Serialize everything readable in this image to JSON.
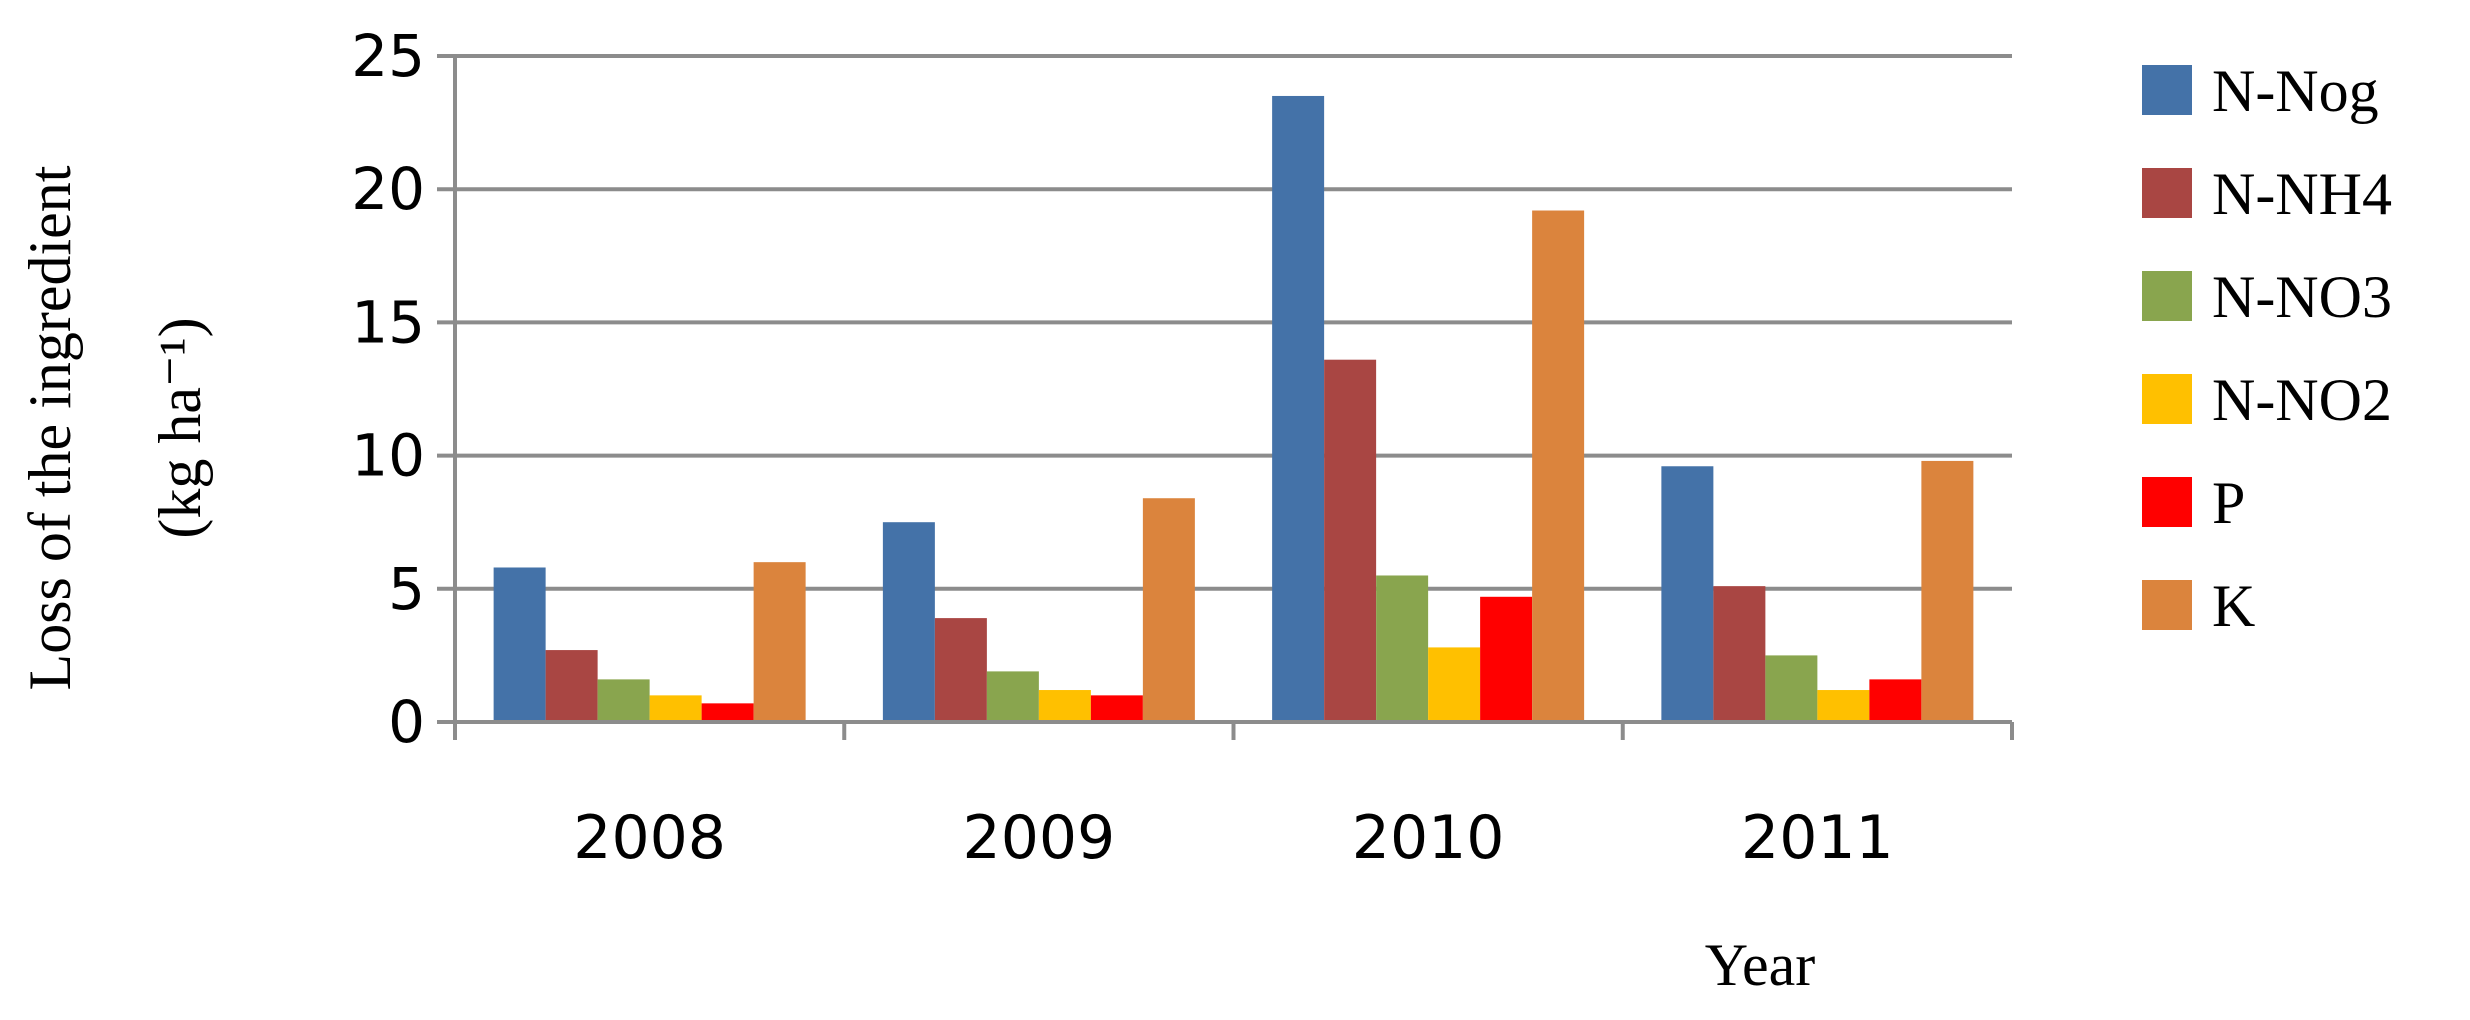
{
  "chart_data": {
    "type": "bar",
    "categories": [
      "2008",
      "2009",
      "2010",
      "2011"
    ],
    "series": [
      {
        "name": "N-Nog",
        "values": [
          5.8,
          7.5,
          23.5,
          9.6
        ],
        "color": "#4472A8"
      },
      {
        "name": "N-NH4",
        "values": [
          2.7,
          3.9,
          13.6,
          5.1
        ],
        "color": "#A94643"
      },
      {
        "name": "N-NO3",
        "values": [
          1.6,
          1.9,
          5.5,
          2.5
        ],
        "color": "#89A54E"
      },
      {
        "name": "N-NO2",
        "values": [
          1.0,
          1.2,
          2.8,
          1.2
        ],
        "color": "#FFC000"
      },
      {
        "name": "P",
        "values": [
          0.7,
          1.0,
          4.7,
          1.6
        ],
        "color": "#FF0000"
      },
      {
        "name": "K",
        "values": [
          6.0,
          8.4,
          19.2,
          9.8
        ],
        "color": "#DB843D"
      }
    ],
    "title": "",
    "xlabel": "Year",
    "ylabel": "Loss of the ingredient",
    "ylabel_unit": "(kg ha⁻¹)",
    "ylim": [
      0,
      25
    ],
    "yticks": [
      "0",
      "5",
      "10",
      "15",
      "20",
      "25"
    ],
    "grid": true,
    "legend_position": "right"
  }
}
